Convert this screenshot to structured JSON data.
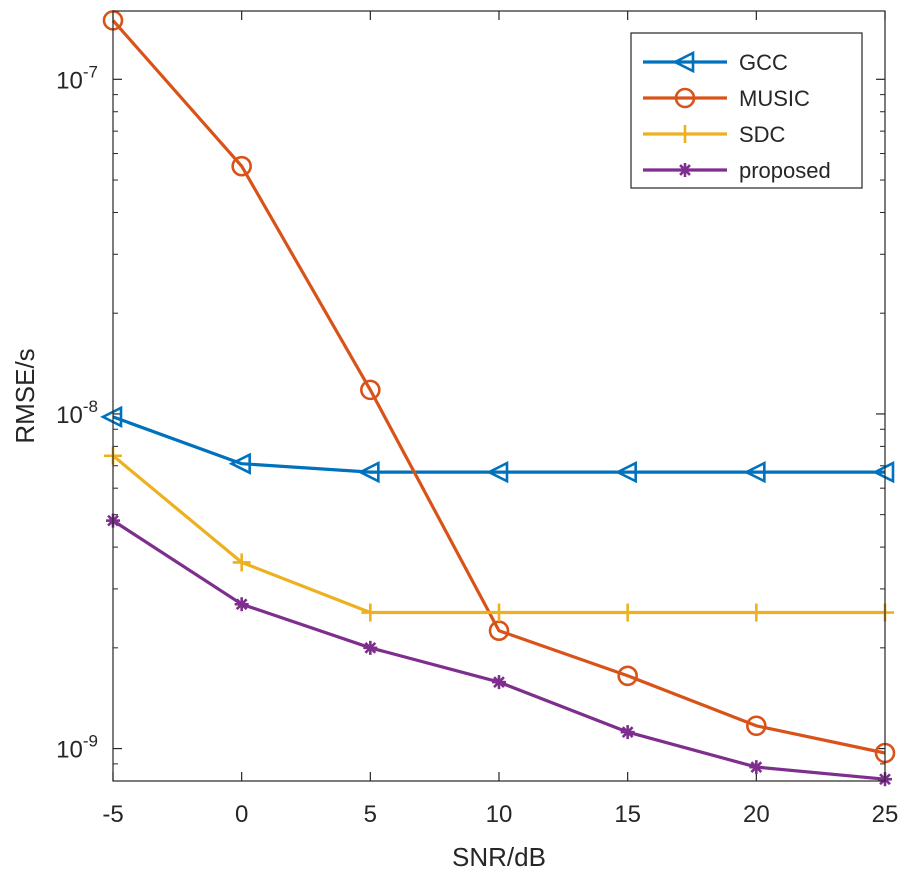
{
  "chart_data": {
    "type": "line",
    "title": "",
    "xlabel": "SNR/dB",
    "ylabel": "RMSE/s",
    "yscale": "log",
    "x": [
      -5,
      0,
      5,
      10,
      15,
      20,
      25
    ],
    "xlim": [
      -5,
      25
    ],
    "ylim": [
      8e-10,
      1.6e-07
    ],
    "x_tick_labels": [
      "-5",
      "0",
      "5",
      "10",
      "15",
      "20",
      "25"
    ],
    "y_ticks": [
      {
        "value": 1e-09,
        "base": "10",
        "exp": "-9"
      },
      {
        "value": 1e-08,
        "base": "10",
        "exp": "-8"
      },
      {
        "value": 1e-07,
        "base": "10",
        "exp": "-7"
      }
    ],
    "legend_position": "top-right",
    "series": [
      {
        "name": "GCC",
        "color": "#0072BD",
        "marker": "triangle-left",
        "values": [
          9.8e-09,
          7.1e-09,
          6.7e-09,
          6.7e-09,
          6.7e-09,
          6.7e-09,
          6.7e-09
        ]
      },
      {
        "name": "MUSIC",
        "color": "#D95319",
        "marker": "circle",
        "values": [
          1.5e-07,
          5.5e-08,
          1.18e-08,
          2.25e-09,
          1.65e-09,
          1.17e-09,
          9.7e-10
        ]
      },
      {
        "name": "SDC",
        "color": "#EDB120",
        "marker": "plus",
        "values": [
          7.5e-09,
          3.6e-09,
          2.55e-09,
          2.55e-09,
          2.55e-09,
          2.55e-09,
          2.55e-09
        ]
      },
      {
        "name": "proposed",
        "color": "#7E2F8E",
        "marker": "asterisk",
        "values": [
          4.8e-09,
          2.7e-09,
          2e-09,
          1.58e-09,
          1.12e-09,
          8.8e-10,
          8.1e-10
        ]
      }
    ]
  }
}
